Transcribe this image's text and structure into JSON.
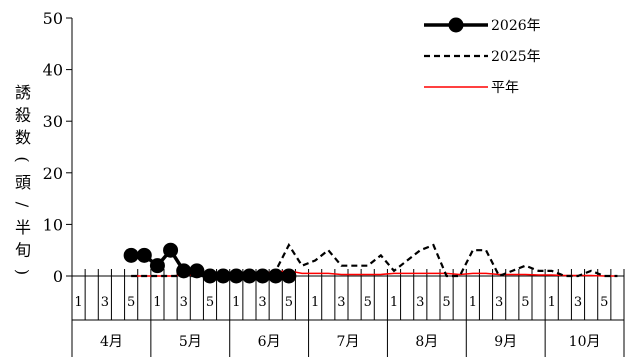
{
  "chart_data": {
    "type": "line",
    "ylabel": "誘殺数(頭/半旬)",
    "ylim": [
      0,
      50
    ],
    "yticks": [
      0,
      10,
      20,
      30,
      40,
      50
    ],
    "grid": false,
    "legend_position": "top-right",
    "months": [
      "4月",
      "5月",
      "6月",
      "7月",
      "8月",
      "9月",
      "10月"
    ],
    "pentad_labels": [
      "1",
      "",
      "3",
      "",
      "5",
      ""
    ],
    "categories_count": 42,
    "series": [
      {
        "name": "2026年",
        "style": "solid-marker",
        "color": "#000000",
        "values": [
          null,
          null,
          null,
          null,
          4,
          4,
          2,
          5,
          1,
          1,
          0,
          0,
          0,
          0,
          0,
          0,
          0,
          null,
          null,
          null,
          null,
          null,
          null,
          null,
          null,
          null,
          null,
          null,
          null,
          null,
          null,
          null,
          null,
          null,
          null,
          null,
          null,
          null,
          null,
          null,
          null,
          null
        ]
      },
      {
        "name": "2025年",
        "style": "dashed",
        "color": "#000000",
        "values": [
          null,
          null,
          null,
          null,
          0,
          0,
          0,
          0,
          0,
          0,
          0,
          0,
          0,
          0,
          0,
          1,
          6,
          2,
          3,
          5,
          2,
          2,
          2,
          4,
          1,
          3,
          5,
          6,
          0,
          0,
          5,
          5,
          0,
          1,
          2,
          1,
          1,
          0,
          0,
          1,
          0,
          0
        ]
      },
      {
        "name": "平年",
        "style": "solid",
        "color": "#ff0000",
        "values": [
          null,
          null,
          null,
          null,
          0,
          0,
          0,
          0,
          0.2,
          0.3,
          0.3,
          0.3,
          0.3,
          0.3,
          0.5,
          0.8,
          1,
          0.5,
          0.5,
          0.5,
          0.3,
          0.3,
          0.3,
          0.3,
          0.5,
          0.5,
          0.5,
          0.5,
          0.5,
          0.3,
          0.5,
          0.5,
          0.3,
          0.3,
          0.3,
          0.2,
          0.2,
          0.1,
          0.1,
          0.1,
          0,
          0
        ]
      }
    ]
  }
}
